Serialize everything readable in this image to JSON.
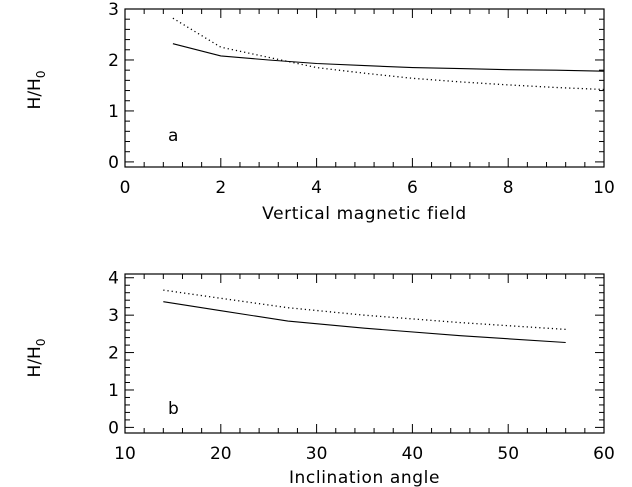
{
  "chart_data": [
    {
      "panel_label": "a",
      "type": "line",
      "xlabel": "Vertical magnetic field",
      "ylabel": "H/H",
      "ylabel_sub": "0",
      "xlim": [
        0,
        10
      ],
      "ylim": [
        -0.1,
        3.0
      ],
      "xticks": [
        0,
        2,
        4,
        6,
        8,
        10
      ],
      "yticks": [
        0,
        1,
        2,
        3
      ],
      "series": [
        {
          "style": "solid",
          "x": [
            1,
            2,
            3,
            4,
            5,
            6,
            7,
            8,
            9,
            10
          ],
          "values": [
            2.32,
            2.08,
            2.0,
            1.93,
            1.89,
            1.85,
            1.83,
            1.81,
            1.8,
            1.78
          ]
        },
        {
          "style": "dotted",
          "x": [
            1,
            2,
            3,
            4,
            5,
            6,
            7,
            8,
            9,
            10
          ],
          "values": [
            2.82,
            2.25,
            2.05,
            1.85,
            1.74,
            1.64,
            1.57,
            1.51,
            1.46,
            1.42
          ]
        }
      ]
    },
    {
      "panel_label": "b",
      "type": "line",
      "xlabel": "Inclination angle",
      "ylabel": "H/H",
      "ylabel_sub": "0",
      "xlim": [
        10,
        60
      ],
      "ylim": [
        -0.15,
        4.1
      ],
      "xticks": [
        10,
        20,
        30,
        40,
        50,
        60
      ],
      "yticks": [
        0,
        1,
        2,
        3,
        4
      ],
      "series": [
        {
          "style": "solid",
          "x": [
            14,
            20,
            27,
            35,
            45,
            56
          ],
          "values": [
            3.36,
            3.12,
            2.84,
            2.65,
            2.45,
            2.27
          ]
        },
        {
          "style": "dotted",
          "x": [
            14,
            20,
            27,
            35,
            45,
            56
          ],
          "values": [
            3.67,
            3.45,
            3.2,
            3.0,
            2.8,
            2.62
          ]
        }
      ]
    }
  ]
}
